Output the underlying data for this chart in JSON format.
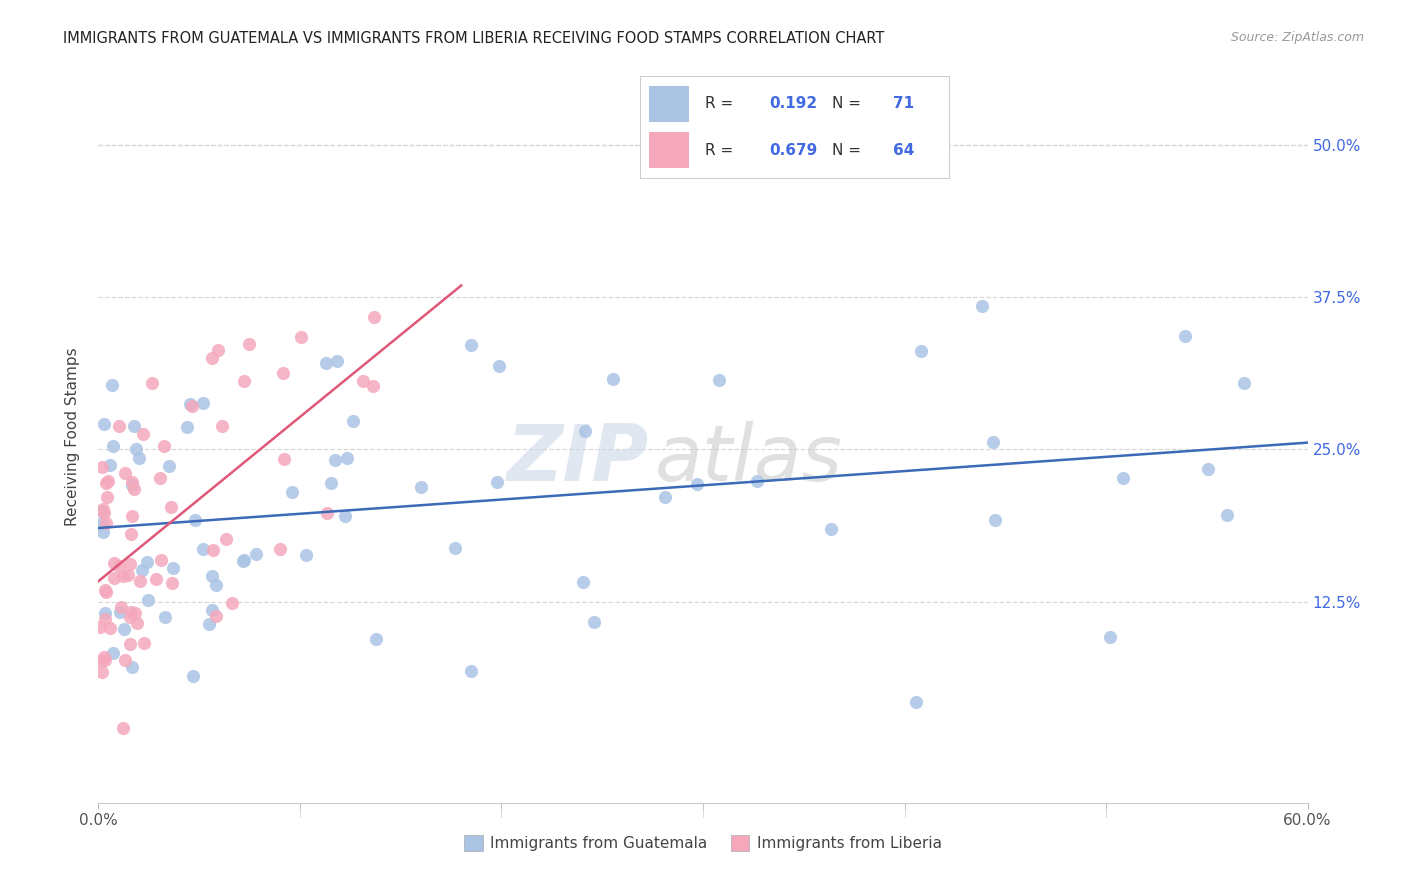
{
  "title": "IMMIGRANTS FROM GUATEMALA VS IMMIGRANTS FROM LIBERIA RECEIVING FOOD STAMPS CORRELATION CHART",
  "source": "Source: ZipAtlas.com",
  "ylabel": "Receiving Food Stamps",
  "ytick_labels": [
    "12.5%",
    "25.0%",
    "37.5%",
    "50.0%"
  ],
  "ytick_values": [
    0.125,
    0.25,
    0.375,
    0.5
  ],
  "xlim": [
    0.0,
    0.6
  ],
  "ylim": [
    -0.04,
    0.56
  ],
  "legend_R1": "0.192",
  "legend_N1": "71",
  "legend_R2": "0.679",
  "legend_N2": "64",
  "color_guatemala": "#aac4e4",
  "color_liberia": "#f5a8bc",
  "color_line_guatemala": "#3a6ab8",
  "color_line_liberia": "#e05878",
  "watermark_zip": "ZIP",
  "watermark_atlas": "atlas",
  "background_color": "#ffffff",
  "grid_color": "#d8d8d8"
}
